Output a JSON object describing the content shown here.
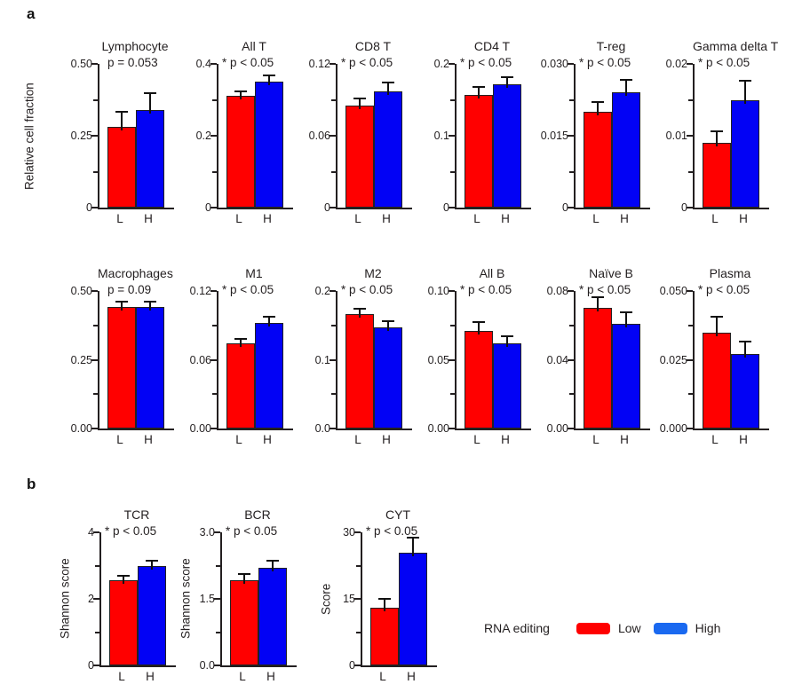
{
  "figure": {
    "panel_a_label": "a",
    "panel_b_label": "b",
    "row1_ylabel": "Relative cell fraction"
  },
  "legend": {
    "title": "RNA editing",
    "items": [
      {
        "label": "Low",
        "color": "#ff0000"
      },
      {
        "label": "High",
        "color": "#1a69f0"
      }
    ]
  },
  "bar_colors": {
    "low": "#ff0000",
    "high": "#0202f5"
  },
  "categories": [
    "L",
    "H"
  ],
  "chart_data": [
    {
      "type": "bar",
      "panel": "a",
      "row": 1,
      "title": "Lymphocyte",
      "sig": "p = 0.053",
      "ymax": 0.5,
      "ytick_labels": [
        "0",
        "0.25",
        "0.50"
      ],
      "series_names": [
        "Low",
        "High"
      ],
      "values": [
        0.28,
        0.34
      ],
      "errors_top": [
        0.335,
        0.4
      ]
    },
    {
      "type": "bar",
      "panel": "a",
      "row": 1,
      "title": "All T",
      "sig": "* p < 0.05",
      "ymax": 0.4,
      "ytick_labels": [
        "0",
        "0.2",
        "0.4"
      ],
      "series_names": [
        "Low",
        "High"
      ],
      "values": [
        0.31,
        0.35
      ],
      "errors_top": [
        0.325,
        0.37
      ]
    },
    {
      "type": "bar",
      "panel": "a",
      "row": 1,
      "title": "CD8 T",
      "sig": "* p < 0.05",
      "ymax": 0.12,
      "ytick_labels": [
        "0",
        "0.06",
        "0.12"
      ],
      "series_names": [
        "Low",
        "High"
      ],
      "values": [
        0.085,
        0.097
      ],
      "errors_top": [
        0.092,
        0.105
      ]
    },
    {
      "type": "bar",
      "panel": "a",
      "row": 1,
      "title": "CD4 T",
      "sig": "* p < 0.05",
      "ymax": 0.2,
      "ytick_labels": [
        "0",
        "0.1",
        "0.2"
      ],
      "series_names": [
        "Low",
        "High"
      ],
      "values": [
        0.157,
        0.172
      ],
      "errors_top": [
        0.169,
        0.183
      ]
    },
    {
      "type": "bar",
      "panel": "a",
      "row": 1,
      "title": "T-reg",
      "sig": "* p < 0.05",
      "ymax": 0.03,
      "ytick_labels": [
        "0",
        "0.015",
        "0.030"
      ],
      "series_names": [
        "Low",
        "High"
      ],
      "values": [
        0.02,
        0.024
      ],
      "errors_top": [
        0.0222,
        0.0268
      ]
    },
    {
      "type": "bar",
      "panel": "a",
      "row": 1,
      "title": "Gamma delta T",
      "sig": "* p < 0.05",
      "ymax": 0.02,
      "ytick_labels": [
        "0",
        "0.01",
        "0.02"
      ],
      "series_names": [
        "Low",
        "High"
      ],
      "values": [
        0.009,
        0.015
      ],
      "errors_top": [
        0.0108,
        0.0178
      ]
    },
    {
      "type": "bar",
      "panel": "a",
      "row": 2,
      "title": "Macrophages",
      "sig": "p = 0.09",
      "ymax": 0.5,
      "ytick_labels": [
        "0.00",
        "0.25",
        "0.50"
      ],
      "series_names": [
        "Low",
        "High"
      ],
      "values": [
        0.443,
        0.443
      ],
      "errors_top": [
        0.466,
        0.464
      ]
    },
    {
      "type": "bar",
      "panel": "a",
      "row": 2,
      "title": "M1",
      "sig": "* p < 0.05",
      "ymax": 0.12,
      "ytick_labels": [
        "0.00",
        "0.06",
        "0.12"
      ],
      "series_names": [
        "Low",
        "High"
      ],
      "values": [
        0.074,
        0.092
      ],
      "errors_top": [
        0.079,
        0.098
      ]
    },
    {
      "type": "bar",
      "panel": "a",
      "row": 2,
      "title": "M2",
      "sig": "* p < 0.05",
      "ymax": 0.2,
      "ytick_labels": [
        "0.0",
        "0.1",
        "0.2"
      ],
      "series_names": [
        "Low",
        "High"
      ],
      "values": [
        0.166,
        0.147
      ],
      "errors_top": [
        0.176,
        0.157
      ]
    },
    {
      "type": "bar",
      "panel": "a",
      "row": 2,
      "title": "All B",
      "sig": "* p < 0.05",
      "ymax": 0.1,
      "ytick_labels": [
        "0.00",
        "0.05",
        "0.10"
      ],
      "series_names": [
        "Low",
        "High"
      ],
      "values": [
        0.071,
        0.062
      ],
      "errors_top": [
        0.078,
        0.068
      ]
    },
    {
      "type": "bar",
      "panel": "a",
      "row": 2,
      "title": "Naïve B",
      "sig": "* p < 0.05",
      "ymax": 0.08,
      "ytick_labels": [
        "0.00",
        "0.04",
        "0.08"
      ],
      "series_names": [
        "Low",
        "High"
      ],
      "values": [
        0.07,
        0.061
      ],
      "errors_top": [
        0.077,
        0.068
      ]
    },
    {
      "type": "bar",
      "panel": "a",
      "row": 2,
      "title": "Plasma",
      "sig": "* p < 0.05",
      "ymax": 0.05,
      "ytick_labels": [
        "0.000",
        "0.025",
        "0.050"
      ],
      "series_names": [
        "Low",
        "High"
      ],
      "values": [
        0.035,
        0.027
      ],
      "errors_top": [
        0.041,
        0.032
      ]
    },
    {
      "type": "bar",
      "panel": "b",
      "row": 3,
      "title": "TCR",
      "sig": "* p < 0.05",
      "ylabel": "Shannon score",
      "ymax": 4,
      "ytick_labels": [
        "0",
        "2",
        "4"
      ],
      "series_names": [
        "Low",
        "High"
      ],
      "values": [
        2.55,
        3.0
      ],
      "errors_top": [
        2.72,
        3.18
      ]
    },
    {
      "type": "bar",
      "panel": "b",
      "row": 3,
      "title": "BCR",
      "sig": "* p < 0.05",
      "ylabel": "Shannon score",
      "ymax": 3,
      "ytick_labels": [
        "0.0",
        "1.5",
        "3.0"
      ],
      "series_names": [
        "Low",
        "High"
      ],
      "values": [
        1.93,
        2.21
      ],
      "errors_top": [
        2.08,
        2.38
      ]
    },
    {
      "type": "bar",
      "panel": "b",
      "row": 3,
      "title": "CYT",
      "sig": "* p < 0.05",
      "ylabel": "Score",
      "ymax": 30,
      "ytick_labels": [
        "0",
        "15",
        "30"
      ],
      "series_names": [
        "Low",
        "High"
      ],
      "values": [
        13,
        25.4
      ],
      "errors_top": [
        15.2,
        29
      ]
    }
  ]
}
